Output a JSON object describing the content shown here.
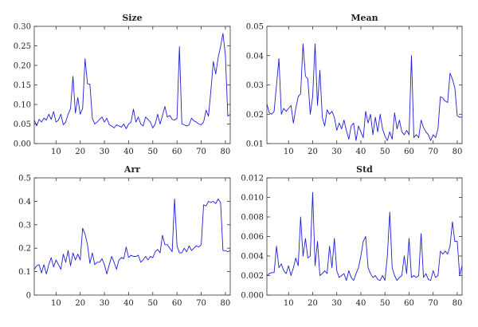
{
  "chart_data": [
    {
      "type": "line",
      "title": "Size",
      "xlabel": "",
      "ylabel": "",
      "xlim": [
        1,
        82
      ],
      "ylim": [
        0,
        0.3
      ],
      "x_ticks": [
        10,
        20,
        30,
        40,
        50,
        60,
        70,
        80
      ],
      "y_ticks": [
        "0.00",
        "0.05",
        "0.10",
        "0.15",
        "0.20",
        "0.25",
        "0.30"
      ],
      "grid": false,
      "line_color": "#1f1fd6",
      "values": [
        0.06,
        0.045,
        0.062,
        0.055,
        0.065,
        0.06,
        0.075,
        0.062,
        0.082,
        0.055,
        0.06,
        0.075,
        0.048,
        0.055,
        0.075,
        0.09,
        0.172,
        0.078,
        0.118,
        0.075,
        0.09,
        0.217,
        0.153,
        0.152,
        0.065,
        0.05,
        0.055,
        0.062,
        0.068,
        0.055,
        0.065,
        0.048,
        0.045,
        0.04,
        0.048,
        0.045,
        0.042,
        0.05,
        0.038,
        0.05,
        0.055,
        0.088,
        0.055,
        0.068,
        0.05,
        0.045,
        0.068,
        0.062,
        0.055,
        0.04,
        0.05,
        0.075,
        0.05,
        0.072,
        0.095,
        0.068,
        0.072,
        0.062,
        0.06,
        0.065,
        0.248,
        0.05,
        0.048,
        0.045,
        0.048,
        0.065,
        0.058,
        0.055,
        0.05,
        0.048,
        0.055,
        0.085,
        0.07,
        0.135,
        0.21,
        0.178,
        0.22,
        0.248,
        0.282,
        0.225,
        0.07,
        0.075
      ]
    },
    {
      "type": "line",
      "title": "Mean",
      "xlabel": "",
      "ylabel": "",
      "xlim": [
        1,
        82
      ],
      "ylim": [
        0.01,
        0.05
      ],
      "x_ticks": [
        10,
        20,
        30,
        40,
        50,
        60,
        70,
        80
      ],
      "y_ticks": [
        "0.01",
        "0.02",
        "0.03",
        "0.04",
        "0.05"
      ],
      "grid": false,
      "line_color": "#1f1fd6",
      "values": [
        0.0235,
        0.0205,
        0.02,
        0.021,
        0.03,
        0.039,
        0.02,
        0.022,
        0.021,
        0.022,
        0.023,
        0.017,
        0.022,
        0.026,
        0.027,
        0.044,
        0.033,
        0.032,
        0.02,
        0.026,
        0.044,
        0.023,
        0.035,
        0.019,
        0.016,
        0.0215,
        0.02,
        0.021,
        0.019,
        0.0145,
        0.017,
        0.015,
        0.018,
        0.0145,
        0.0115,
        0.016,
        0.017,
        0.011,
        0.016,
        0.014,
        0.012,
        0.021,
        0.017,
        0.02,
        0.013,
        0.019,
        0.014,
        0.02,
        0.015,
        0.0125,
        0.011,
        0.014,
        0.0115,
        0.0205,
        0.015,
        0.018,
        0.014,
        0.013,
        0.0145,
        0.013,
        0.04,
        0.012,
        0.013,
        0.012,
        0.018,
        0.0155,
        0.014,
        0.013,
        0.011,
        0.013,
        0.012,
        0.015,
        0.026,
        0.0255,
        0.0245,
        0.024,
        0.034,
        0.032,
        0.029,
        0.0195,
        0.019,
        0.019
      ]
    },
    {
      "type": "line",
      "title": "Arr",
      "xlabel": "",
      "ylabel": "",
      "xlim": [
        1,
        82
      ],
      "ylim": [
        0,
        0.5
      ],
      "x_ticks": [
        10,
        20,
        30,
        40,
        50,
        60,
        70,
        80
      ],
      "y_ticks": [
        "0",
        "0.1",
        "0.2",
        "0.3",
        "0.4",
        "0.5"
      ],
      "grid": false,
      "line_color": "#1f1fd6",
      "values": [
        0.11,
        0.125,
        0.13,
        0.095,
        0.13,
        0.09,
        0.13,
        0.16,
        0.12,
        0.15,
        0.13,
        0.11,
        0.175,
        0.14,
        0.19,
        0.125,
        0.18,
        0.15,
        0.175,
        0.15,
        0.285,
        0.26,
        0.215,
        0.135,
        0.18,
        0.13,
        0.14,
        0.14,
        0.155,
        0.13,
        0.09,
        0.13,
        0.165,
        0.14,
        0.11,
        0.15,
        0.16,
        0.155,
        0.205,
        0.16,
        0.17,
        0.165,
        0.165,
        0.17,
        0.14,
        0.15,
        0.165,
        0.15,
        0.165,
        0.16,
        0.185,
        0.195,
        0.18,
        0.255,
        0.215,
        0.215,
        0.2,
        0.185,
        0.41,
        0.21,
        0.18,
        0.18,
        0.2,
        0.185,
        0.21,
        0.19,
        0.2,
        0.21,
        0.205,
        0.215,
        0.385,
        0.38,
        0.4,
        0.395,
        0.4,
        0.39,
        0.41,
        0.395,
        0.19,
        0.19,
        0.185,
        0.19
      ]
    },
    {
      "type": "line",
      "title": "Std",
      "xlabel": "",
      "ylabel": "",
      "xlim": [
        1,
        82
      ],
      "ylim": [
        0,
        0.012
      ],
      "x_ticks": [
        10,
        20,
        30,
        40,
        50,
        60,
        70,
        80
      ],
      "y_ticks": [
        "0.000",
        "0.002",
        "0.004",
        "0.006",
        "0.008",
        "0.010",
        "0.012"
      ],
      "grid": false,
      "line_color": "#1f1fd6",
      "values": [
        0.002,
        0.0022,
        0.0023,
        0.0023,
        0.005,
        0.0028,
        0.0032,
        0.0025,
        0.0022,
        0.003,
        0.002,
        0.0028,
        0.0038,
        0.003,
        0.008,
        0.004,
        0.0058,
        0.0038,
        0.004,
        0.0105,
        0.003,
        0.0055,
        0.002,
        0.0022,
        0.0025,
        0.0022,
        0.005,
        0.0028,
        0.0058,
        0.0025,
        0.0018,
        0.002,
        0.0022,
        0.0015,
        0.0025,
        0.0018,
        0.0015,
        0.0022,
        0.0028,
        0.004,
        0.0055,
        0.006,
        0.0028,
        0.0022,
        0.0018,
        0.002,
        0.0016,
        0.0015,
        0.002,
        0.0015,
        0.004,
        0.0085,
        0.0028,
        0.002,
        0.0015,
        0.0018,
        0.002,
        0.004,
        0.0022,
        0.0058,
        0.0018,
        0.002,
        0.0018,
        0.002,
        0.0063,
        0.0018,
        0.0022,
        0.0016,
        0.0015,
        0.0025,
        0.0018,
        0.002,
        0.0045,
        0.0042,
        0.0045,
        0.0042,
        0.005,
        0.0075,
        0.0055,
        0.0055,
        0.002,
        0.003
      ]
    }
  ]
}
